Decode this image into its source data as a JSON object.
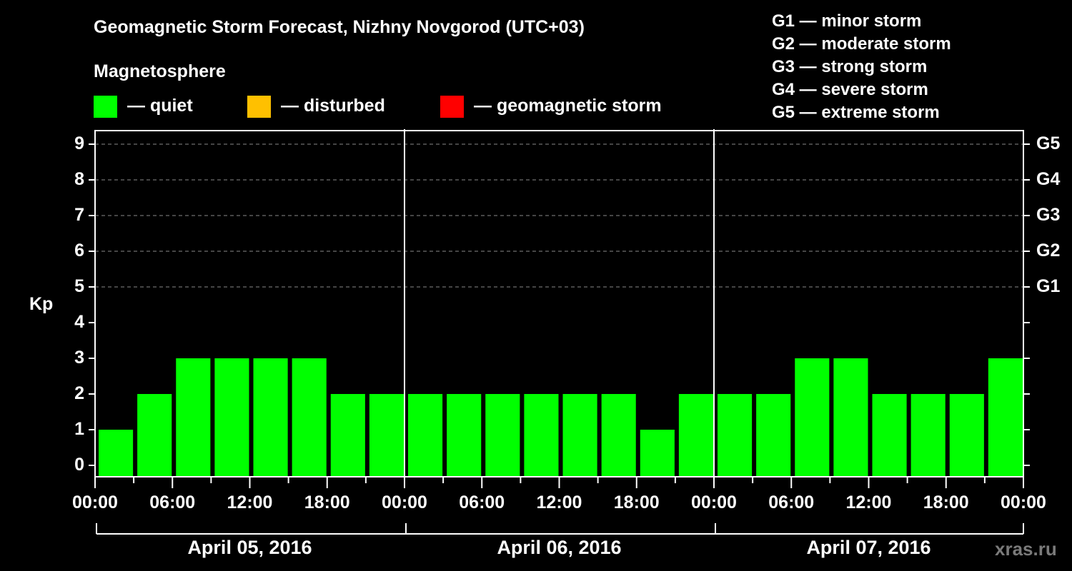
{
  "header": {
    "title": "Geomagnetic Storm Forecast, Nizhny Novgorod (UTC+03)",
    "subtitle": "Magnetosphere"
  },
  "legend": [
    {
      "label": "— quiet",
      "color": "#00ff00"
    },
    {
      "label": "— disturbed",
      "color": "#ffc000"
    },
    {
      "label": "— geomagnetic storm",
      "color": "#ff0000"
    }
  ],
  "g_scale": [
    "G1 — minor storm",
    "G2 — moderate storm",
    "G3 — strong storm",
    "G4 — severe storm",
    "G5 — extreme storm"
  ],
  "axes": {
    "ylabel": "Kp",
    "yticks": [
      "0",
      "1",
      "2",
      "3",
      "4",
      "5",
      "6",
      "7",
      "8",
      "9"
    ],
    "right_ticks": [
      "G1",
      "G2",
      "G3",
      "G4",
      "G5"
    ],
    "xticks": [
      "00:00",
      "06:00",
      "12:00",
      "18:00",
      "00:00",
      "06:00",
      "12:00",
      "18:00",
      "00:00",
      "06:00",
      "12:00",
      "18:00",
      "00:00"
    ],
    "dates": [
      "April 05, 2016",
      "April 06, 2016",
      "April 07, 2016"
    ]
  },
  "watermark": "xras.ru",
  "chart_data": {
    "type": "bar",
    "title": "Geomagnetic Storm Forecast, Nizhny Novgorod (UTC+03)",
    "xlabel": "",
    "ylabel": "Kp",
    "ylim": [
      0,
      9
    ],
    "grid": "dashed horizontal at Kp 5-9",
    "legend_position": "top",
    "categories": [
      "Apr 05 00:00",
      "Apr 05 03:00",
      "Apr 05 06:00",
      "Apr 05 09:00",
      "Apr 05 12:00",
      "Apr 05 15:00",
      "Apr 05 18:00",
      "Apr 05 21:00",
      "Apr 06 00:00",
      "Apr 06 03:00",
      "Apr 06 06:00",
      "Apr 06 09:00",
      "Apr 06 12:00",
      "Apr 06 15:00",
      "Apr 06 18:00",
      "Apr 06 21:00",
      "Apr 07 00:00",
      "Apr 07 03:00",
      "Apr 07 06:00",
      "Apr 07 09:00",
      "Apr 07 12:00",
      "Apr 07 15:00",
      "Apr 07 18:00",
      "Apr 07 21:00"
    ],
    "values": [
      1,
      2,
      3,
      3,
      3,
      3,
      2,
      2,
      2,
      2,
      2,
      2,
      2,
      2,
      1,
      2,
      2,
      2,
      3,
      3,
      2,
      2,
      2,
      3
    ],
    "bar_colors": {
      "quiet": "#00ff00",
      "disturbed": "#ffc000",
      "storm": "#ff0000"
    },
    "secondary_axis": {
      "G1": 5,
      "G2": 6,
      "G3": 7,
      "G4": 8,
      "G5": 9
    }
  }
}
